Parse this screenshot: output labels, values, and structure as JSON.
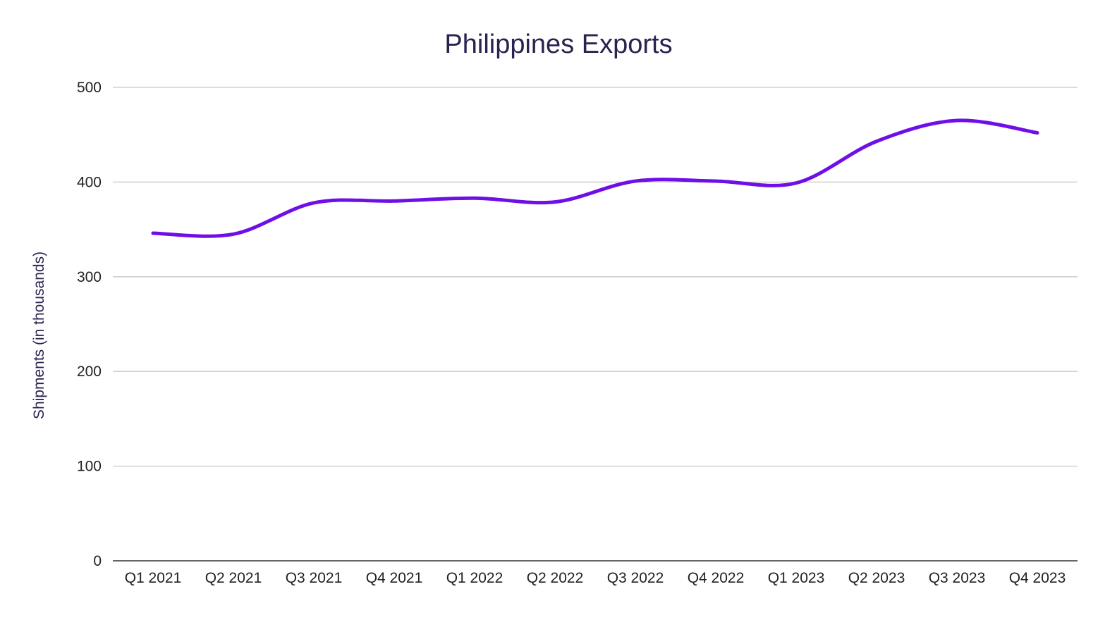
{
  "chart_data": {
    "type": "line",
    "title": "Philippines Exports",
    "xlabel": "",
    "ylabel": "Shipments (in thousands)",
    "ylim": [
      0,
      500
    ],
    "yticks": [
      0,
      100,
      200,
      300,
      400,
      500
    ],
    "grid": true,
    "legend": "none",
    "categories": [
      "Q1 2021",
      "Q2 2021",
      "Q3 2021",
      "Q4 2021",
      "Q1 2022",
      "Q2 2022",
      "Q3 2022",
      "Q4 2022",
      "Q1 2023",
      "Q2 2023",
      "Q3 2023",
      "Q4 2023"
    ],
    "series": [
      {
        "color": "#6f0fe8",
        "values": [
          346,
          345,
          378,
          380,
          383,
          379,
          401,
          401,
          399,
          443,
          465,
          452
        ]
      }
    ]
  }
}
